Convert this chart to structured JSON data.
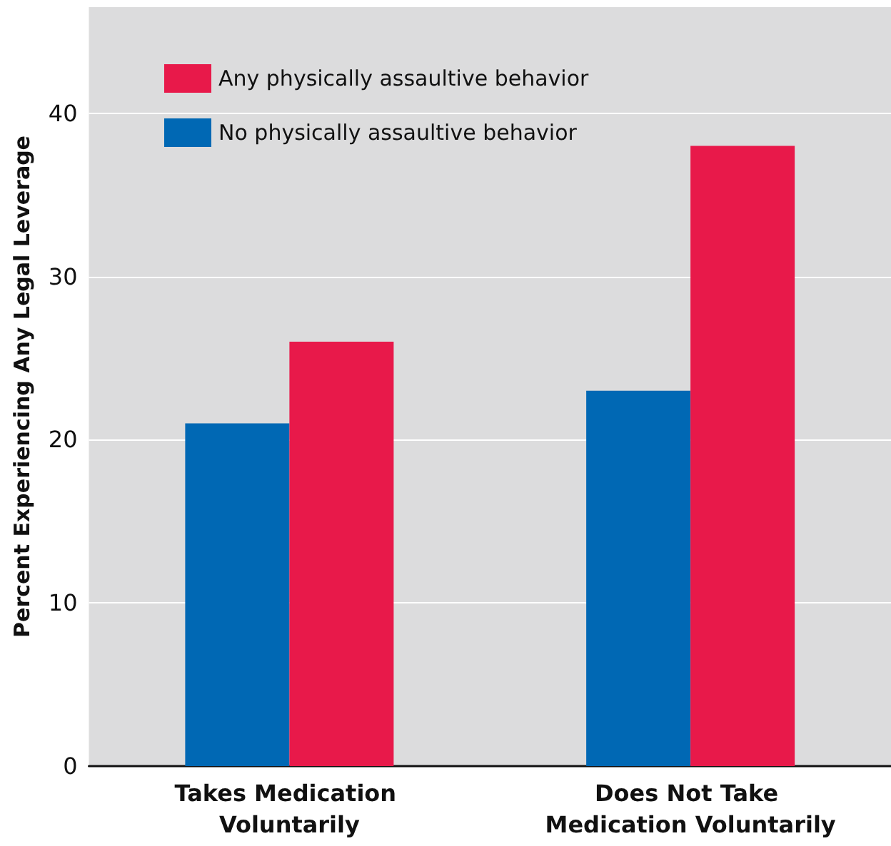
{
  "chart_data": {
    "type": "bar",
    "ylabel": "Percent Experiencing Any Legal Leverage",
    "categories": [
      "Takes Medication Voluntarily",
      "Does Not Take Medication Voluntarily"
    ],
    "series": [
      {
        "name": "No physically assaultive behavior",
        "color": "#0068b4",
        "values": [
          21,
          23
        ]
      },
      {
        "name": "Any physically assaultive behavior",
        "color": "#e8194a",
        "values": [
          26,
          38
        ]
      }
    ],
    "ylim": [
      0,
      46.5
    ],
    "yticks": [
      0,
      10,
      20,
      30,
      40
    ],
    "grid": "y",
    "legend": "top left"
  }
}
